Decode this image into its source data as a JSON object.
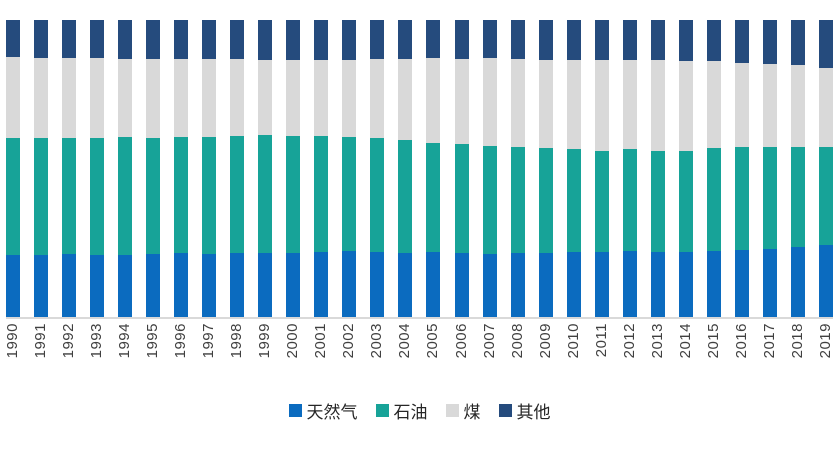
{
  "colors": {
    "gas_blue": "#0B6BBF",
    "oil_teal": "#17A398",
    "coal_gray": "#D9D9D9",
    "other_navy": "#254B7D",
    "axis_line": "#D9D9D9",
    "tick_text": "#404040",
    "legend_text": "#262626"
  },
  "chart_data": {
    "type": "bar",
    "stacked": true,
    "unit": "percent share of total (100% stacked)",
    "title": "",
    "xlabel": "",
    "ylabel": "",
    "ylim": [
      0,
      100
    ],
    "grid": false,
    "legend_position": "bottom",
    "categories": [
      "1990",
      "1991",
      "1992",
      "1993",
      "1994",
      "1995",
      "1996",
      "1997",
      "1998",
      "1999",
      "2000",
      "2001",
      "2002",
      "2003",
      "2004",
      "2005",
      "2006",
      "2007",
      "2008",
      "2009",
      "2010",
      "2011",
      "2012",
      "2013",
      "2014",
      "2015",
      "2016",
      "2017",
      "2018",
      "2019"
    ],
    "series": [
      {
        "key": "gas",
        "name": "天然气",
        "color": "#0B6BBF",
        "values": [
          20.9,
          21.0,
          21.1,
          20.9,
          21.0,
          21.2,
          21.7,
          21.3,
          21.5,
          21.7,
          21.5,
          21.9,
          22.2,
          21.8,
          21.5,
          21.8,
          21.6,
          21.2,
          21.6,
          21.7,
          21.8,
          22.0,
          22.2,
          22.0,
          22.0,
          22.2,
          22.6,
          22.8,
          23.5,
          24.2
        ]
      },
      {
        "key": "oil",
        "name": "石油",
        "color": "#17A398",
        "values": [
          39.3,
          39.2,
          39.3,
          39.4,
          39.5,
          39.1,
          38.8,
          39.4,
          39.6,
          39.6,
          39.4,
          39.0,
          38.5,
          38.6,
          38.2,
          36.8,
          36.5,
          36.4,
          35.5,
          35.1,
          34.9,
          34.0,
          34.3,
          33.8,
          33.9,
          34.8,
          34.6,
          34.3,
          33.6,
          32.9
        ]
      },
      {
        "key": "coal",
        "name": "煤",
        "color": "#D9D9D9",
        "values": [
          27.2,
          27.0,
          26.9,
          26.8,
          26.5,
          26.6,
          26.5,
          26.2,
          25.8,
          25.4,
          25.7,
          25.6,
          25.9,
          26.4,
          27.1,
          28.5,
          28.9,
          29.5,
          29.9,
          29.9,
          30.0,
          30.7,
          30.1,
          30.7,
          30.3,
          29.2,
          28.3,
          28.0,
          27.6,
          26.9
        ]
      },
      {
        "key": "other",
        "name": "其他",
        "color": "#254B7D",
        "values": [
          12.6,
          12.8,
          12.7,
          12.9,
          13.0,
          13.1,
          13.0,
          13.1,
          13.1,
          13.3,
          13.4,
          13.5,
          13.4,
          13.2,
          13.2,
          12.9,
          13.0,
          12.9,
          13.0,
          13.3,
          13.3,
          13.3,
          13.4,
          13.5,
          13.8,
          13.8,
          14.5,
          14.9,
          15.3,
          16.0
        ]
      }
    ],
    "legend": [
      "天然气",
      "石油",
      "煤",
      "其他"
    ]
  }
}
